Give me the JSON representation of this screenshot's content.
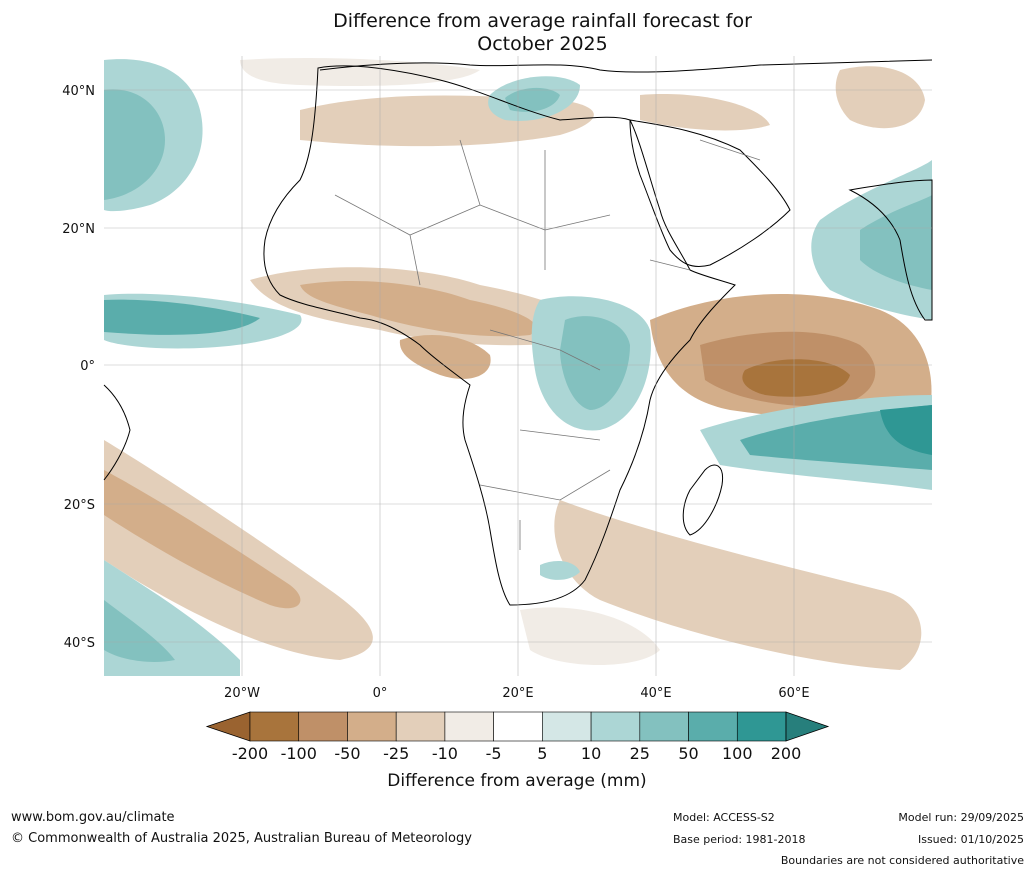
{
  "title": {
    "line1": "Difference from average rainfall forecast for",
    "line2": "October 2025"
  },
  "axes": {
    "lat_labels": [
      "40°N",
      "20°N",
      "0°",
      "20°S",
      "40°S"
    ],
    "lon_labels": [
      "20°W",
      "0°",
      "20°E",
      "40°E",
      "60°E"
    ]
  },
  "colorbar": {
    "title": "Difference from average (mm)",
    "tick_labels": [
      "-200",
      "-100",
      "-50",
      "-25",
      "-10",
      "-5",
      "5",
      "10",
      "25",
      "50",
      "100",
      "200"
    ],
    "colors": [
      "#a8743c",
      "#bf9068",
      "#d3ae8a",
      "#e3cfba",
      "#f1ece6",
      "#ffffff",
      "#d4e7e6",
      "#acd6d5",
      "#83c1bf",
      "#5aadab",
      "#2f9794"
    ],
    "extend_low_color": "#9a6330",
    "extend_high_color": "#277f7c"
  },
  "footer": {
    "website": "www.bom.gov.au/climate",
    "copyright": "© Commonwealth of Australia 2025, Australian Bureau of Meteorology",
    "model": "Model: ACCESS-S2",
    "base_period": "Base period: 1981-2018",
    "model_run": "Model run: 29/09/2025",
    "issued": "Issued: 01/10/2025",
    "disclaimer": "Boundaries are not considered authoritative"
  }
}
